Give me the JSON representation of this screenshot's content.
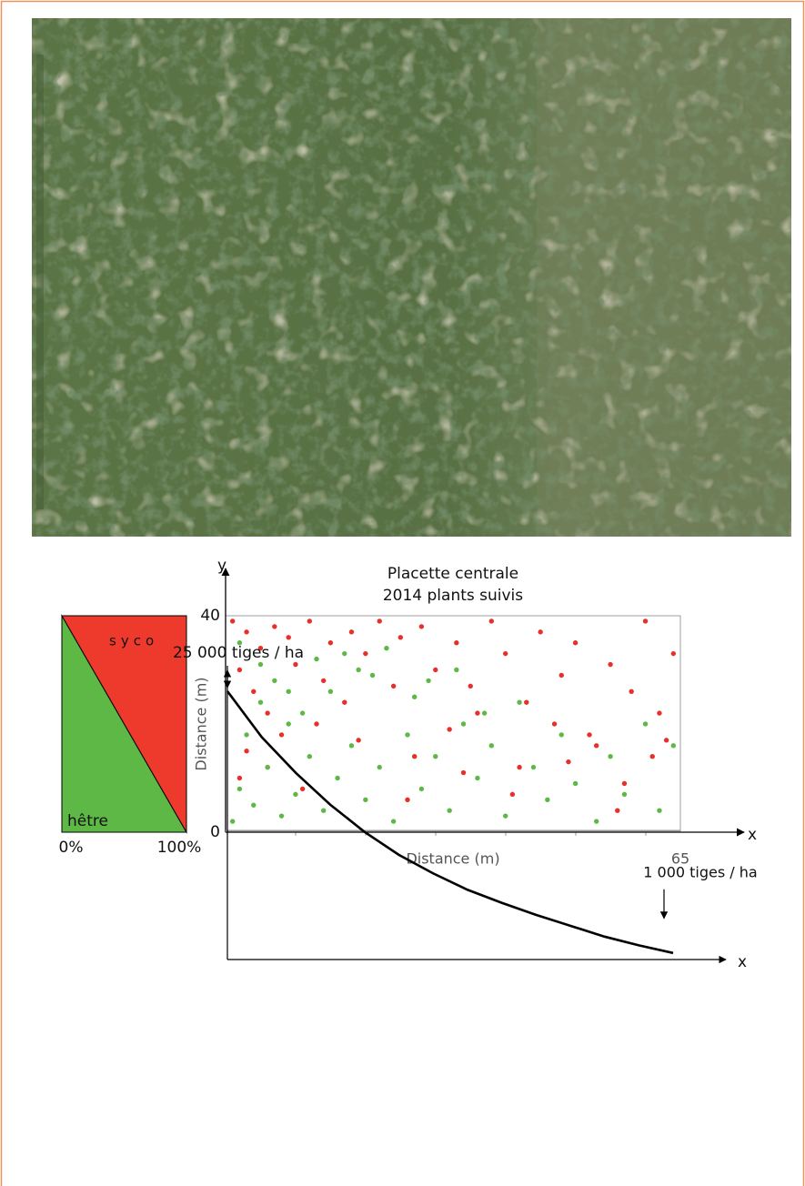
{
  "chart_data": [
    {
      "type": "area",
      "stacked": true,
      "x": [
        0,
        100
      ],
      "xlim": [
        0,
        100
      ],
      "ylim": [
        0,
        100
      ],
      "xticks": [
        {
          "value": 0,
          "label": "0%"
        },
        {
          "value": 100,
          "label": "100%"
        }
      ],
      "series": [
        {
          "name": "hêtre",
          "color": "#5db845",
          "values": [
            100,
            0
          ]
        },
        {
          "name": "syco",
          "color": "#ee3a2c",
          "values": [
            0,
            100
          ]
        }
      ]
    },
    {
      "type": "scatter",
      "title": "Placette centrale",
      "subtitle": "2014 plants suivis",
      "x_label": "Distance (m)",
      "y_label": "Distance (m)",
      "x_axis_name": "x",
      "y_axis_name": "y",
      "xlim": [
        0,
        65
      ],
      "ylim": [
        0,
        40
      ],
      "xticks": [
        65
      ],
      "yticks": [
        0,
        40
      ],
      "series": [
        {
          "color": "#e8302a",
          "x": [
            1,
            3,
            5,
            2,
            7,
            9,
            4,
            12,
            15,
            18,
            6,
            10,
            14,
            20,
            22,
            25,
            28,
            30,
            33,
            35,
            38,
            40,
            43,
            45,
            48,
            50,
            52,
            55,
            58,
            60,
            62,
            64,
            3,
            8,
            13,
            17,
            24,
            27,
            32,
            36,
            42,
            47,
            53,
            57,
            61,
            2,
            6,
            11,
            19,
            26,
            34,
            41,
            49,
            56,
            63
          ],
          "values": [
            39,
            37,
            34,
            30,
            38,
            36,
            26,
            39,
            35,
            37,
            22,
            31,
            28,
            33,
            39,
            36,
            38,
            30,
            35,
            27,
            39,
            33,
            24,
            37,
            29,
            35,
            18,
            31,
            26,
            39,
            22,
            33,
            15,
            18,
            20,
            24,
            27,
            14,
            19,
            22,
            12,
            20,
            16,
            9,
            14,
            10,
            12,
            8,
            17,
            6,
            11,
            7,
            13,
            4,
            17
          ]
        },
        {
          "color": "#5db845",
          "x": [
            1,
            2,
            4,
            6,
            3,
            8,
            5,
            10,
            12,
            9,
            14,
            16,
            7,
            18,
            20,
            11,
            22,
            24,
            15,
            26,
            28,
            30,
            13,
            32,
            34,
            36,
            19,
            38,
            40,
            42,
            44,
            23,
            46,
            48,
            50,
            29,
            53,
            55,
            57,
            60,
            62,
            64,
            2,
            5,
            9,
            17,
            21,
            27,
            33,
            37
          ],
          "values": [
            2,
            8,
            5,
            12,
            18,
            3,
            24,
            7,
            14,
            20,
            4,
            10,
            28,
            16,
            6,
            22,
            12,
            2,
            26,
            18,
            8,
            14,
            32,
            4,
            20,
            10,
            30,
            16,
            3,
            24,
            12,
            34,
            6,
            18,
            9,
            28,
            2,
            14,
            7,
            20,
            4,
            16,
            35,
            31,
            26,
            33,
            29,
            25,
            30,
            22
          ]
        }
      ]
    },
    {
      "type": "line",
      "x_axis_name": "x",
      "x": [
        0,
        5,
        10,
        15,
        20,
        25,
        30,
        35,
        40,
        45,
        50,
        55,
        60,
        65
      ],
      "values": [
        25000,
        20800,
        17500,
        14600,
        12100,
        10000,
        8300,
        6800,
        5600,
        4500,
        3500,
        2500,
        1700,
        1000
      ],
      "color": "#000000",
      "xlim": [
        0,
        65
      ],
      "ylim": [
        400,
        26250
      ],
      "annotations": [
        "25 000 tiges / ha",
        "1 000 tiges / ha"
      ]
    }
  ]
}
